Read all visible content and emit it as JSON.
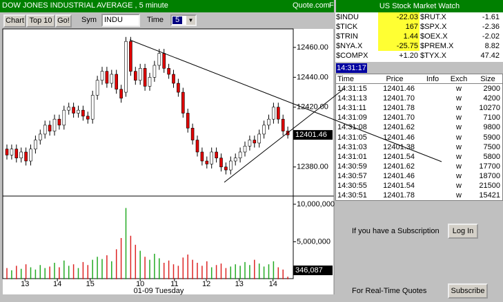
{
  "header": {
    "title": "DOW JONES INDUSTRIAL AVERAGE , 5 minute",
    "brand": "Quote.com",
    "brand_suffix": "F"
  },
  "toolbar": {
    "buttons": [
      "Chart",
      "Top 10",
      "Go!"
    ],
    "sym_label": "Sym",
    "sym_value": "INDU",
    "time_label": "Time",
    "time_value": "5"
  },
  "chart_data": [
    {
      "type": "candlestick",
      "up_color": "#ffffff",
      "down_color": "#e00000",
      "open": [
        12392,
        12388,
        12392,
        12386,
        12390,
        12384,
        12392,
        12398,
        12402,
        12408,
        12404,
        12412,
        12408,
        12418,
        12420,
        12416,
        12418,
        12414,
        12412,
        12428,
        12438,
        12444,
        12436,
        12442,
        12432,
        12430,
        12464,
        12444,
        12438,
        12446,
        12434,
        12440,
        12448,
        12456,
        12446,
        12442,
        12436,
        12430,
        12416,
        12406,
        12398,
        12390,
        12384,
        12382,
        12390,
        12386,
        12380,
        12378,
        12384,
        12386,
        12390,
        12394,
        12398,
        12396,
        12402,
        12408,
        12412,
        12420,
        12412,
        12404
      ],
      "high": [
        12395,
        12395,
        12395,
        12393,
        12393,
        12395,
        12401,
        12405,
        12411,
        12411,
        12415,
        12415,
        12421,
        12423,
        12423,
        12421,
        12421,
        12417,
        12431,
        12441,
        12447,
        12447,
        12445,
        12445,
        12435,
        12467,
        12467,
        12447,
        12449,
        12449,
        12443,
        12451,
        12459,
        12459,
        12449,
        12445,
        12439,
        12433,
        12419,
        12409,
        12401,
        12393,
        12387,
        12393,
        12393,
        12389,
        12383,
        12387,
        12389,
        12393,
        12397,
        12401,
        12401,
        12405,
        12411,
        12415,
        12423,
        12423,
        12415,
        12407
      ],
      "low": [
        12385,
        12385,
        12383,
        12383,
        12381,
        12381,
        12389,
        12395,
        12399,
        12401,
        12401,
        12405,
        12405,
        12415,
        12413,
        12413,
        12411,
        12409,
        12409,
        12425,
        12435,
        12433,
        12433,
        12429,
        12423,
        12427,
        12441,
        12435,
        12435,
        12431,
        12431,
        12437,
        12445,
        12443,
        12439,
        12433,
        12427,
        12413,
        12403,
        12395,
        12387,
        12381,
        12379,
        12379,
        12383,
        12377,
        12375,
        12375,
        12381,
        12383,
        12387,
        12391,
        12393,
        12393,
        12399,
        12405,
        12409,
        12409,
        12401,
        12399
      ],
      "close": [
        12388,
        12392,
        12386,
        12390,
        12384,
        12392,
        12398,
        12402,
        12408,
        12404,
        12412,
        12408,
        12418,
        12420,
        12416,
        12418,
        12414,
        12412,
        12428,
        12438,
        12444,
        12436,
        12442,
        12432,
        12426,
        12464,
        12444,
        12438,
        12446,
        12434,
        12440,
        12448,
        12456,
        12446,
        12442,
        12436,
        12430,
        12416,
        12406,
        12398,
        12390,
        12384,
        12382,
        12390,
        12386,
        12380,
        12378,
        12384,
        12386,
        12390,
        12394,
        12398,
        12396,
        12402,
        12408,
        12412,
        12420,
        12412,
        12404,
        12401.46
      ],
      "ylim": [
        12361,
        12471
      ],
      "yticks": [
        {
          "value": 12460,
          "label": "12460.00"
        },
        {
          "value": 12440,
          "label": "12440.00"
        },
        {
          "value": 12420,
          "label": "12420.00"
        },
        {
          "value": 12380,
          "label": "12380.00"
        }
      ],
      "xticks": [
        {
          "value": 3.8,
          "label": "13"
        },
        {
          "value": 10.6,
          "label": "14"
        },
        {
          "value": 17.5,
          "label": "15"
        },
        {
          "value": 28,
          "label": "10"
        },
        {
          "value": 35.2,
          "label": "11"
        },
        {
          "value": 41.9,
          "label": "12"
        },
        {
          "value": 48.8,
          "label": "13"
        },
        {
          "value": 55.9,
          "label": "14"
        }
      ],
      "xlabel": "01-09 Tuesday"
    },
    {
      "type": "bar",
      "up_color": "#22aa22",
      "down_color": "#dd2222",
      "values": [
        1500000,
        1200000,
        1800000,
        1400000,
        2000000,
        1600000,
        1300000,
        1900000,
        1500000,
        1700000,
        2200000,
        1600000,
        2500000,
        1800000,
        2000000,
        1500000,
        2300000,
        1900000,
        2600000,
        3000000,
        2700000,
        3200000,
        2400000,
        4000000,
        5500000,
        9500000,
        5800000,
        4600000,
        3800000,
        3000000,
        2600000,
        3400000,
        2800000,
        2200000,
        2500000,
        2000000,
        1800000,
        2900000,
        3300000,
        2600000,
        2200000,
        1800000,
        2400000,
        1600000,
        1900000,
        2100000,
        1500000,
        1700000,
        2000000,
        1800000,
        2300000,
        1900000,
        2600000,
        2100000,
        1700000,
        2000000,
        2400000,
        1600000,
        1300000,
        346087
      ],
      "value_labels": [
        null,
        null,
        null,
        null,
        null,
        null,
        null,
        null,
        null,
        null,
        null,
        null,
        null,
        null,
        null,
        null,
        null,
        null,
        null,
        null,
        null,
        null,
        null,
        null,
        null,
        null,
        null,
        null,
        null,
        null,
        null,
        null,
        null,
        null,
        null,
        null,
        null,
        null,
        null,
        null,
        null,
        null,
        null,
        null,
        null,
        null,
        null,
        null,
        null,
        null,
        null,
        null,
        null,
        null,
        null,
        null,
        null,
        null,
        null,
        "346,087"
      ],
      "ylim": [
        0,
        11000000
      ],
      "yticks": [
        {
          "value": 10000000,
          "label": "10,000,000"
        },
        {
          "value": 5000000,
          "label": "5,000,000"
        }
      ]
    }
  ],
  "market_watch": {
    "title": "US Stock Market Watch",
    "rows": [
      [
        {
          "symbol": "$INDU",
          "change": "-22.03",
          "highlight": true
        },
        {
          "symbol": "$RUT.X",
          "change": "-1.61",
          "highlight": false
        }
      ],
      [
        {
          "symbol": "$TICK",
          "change": "167",
          "highlight": true
        },
        {
          "symbol": "$SPX.X",
          "change": "-2.36",
          "highlight": false
        }
      ],
      [
        {
          "symbol": "$TRIN",
          "change": "1.44",
          "highlight": true
        },
        {
          "symbol": "$OEX.X",
          "change": "-2.02",
          "highlight": false
        }
      ],
      [
        {
          "symbol": "$NYA.X",
          "change": "-25.75",
          "highlight": true
        },
        {
          "symbol": "$PREM.X",
          "change": "8.82",
          "highlight": false
        }
      ],
      [
        {
          "symbol": "$COMPX",
          "change": "+1.20",
          "highlight": false
        },
        {
          "symbol": "$TYX.X",
          "change": "47.42",
          "highlight": false
        }
      ]
    ],
    "time": "14:31:17"
  },
  "trades": {
    "columns": [
      "Time",
      "Price",
      "Info",
      "Exch",
      "Size"
    ],
    "rows": [
      {
        "time": "14:31:15",
        "price": "12401.46",
        "exch": "w",
        "size": "2900"
      },
      {
        "time": "14:31:13",
        "price": "12401.70",
        "exch": "w",
        "size": "4200"
      },
      {
        "time": "14:31:11",
        "price": "12401.78",
        "exch": "w",
        "size": "10270"
      },
      {
        "time": "14:31:09",
        "price": "12401.70",
        "exch": "w",
        "size": "7100"
      },
      {
        "time": "14:31:08",
        "price": "12401.62",
        "exch": "w",
        "size": "9800"
      },
      {
        "time": "14:31:05",
        "price": "12401.46",
        "exch": "w",
        "size": "5900"
      },
      {
        "time": "14:31:03",
        "price": "12401.38",
        "exch": "w",
        "size": "7500"
      },
      {
        "time": "14:31:01",
        "price": "12401.54",
        "exch": "w",
        "size": "5800"
      },
      {
        "time": "14:30:59",
        "price": "12401.62",
        "exch": "w",
        "size": "17700"
      },
      {
        "time": "14:30:57",
        "price": "12401.46",
        "exch": "w",
        "size": "18700"
      },
      {
        "time": "14:30:55",
        "price": "12401.54",
        "exch": "w",
        "size": "21500"
      },
      {
        "time": "14:30:51",
        "price": "12401.78",
        "exch": "w",
        "size": "15421"
      }
    ]
  },
  "subscription": {
    "login_prompt": "If you have a Subscription",
    "login_button": "Log In",
    "subscribe_prompt": "For Real-Time Quotes",
    "subscribe_button": "Subscribe"
  }
}
